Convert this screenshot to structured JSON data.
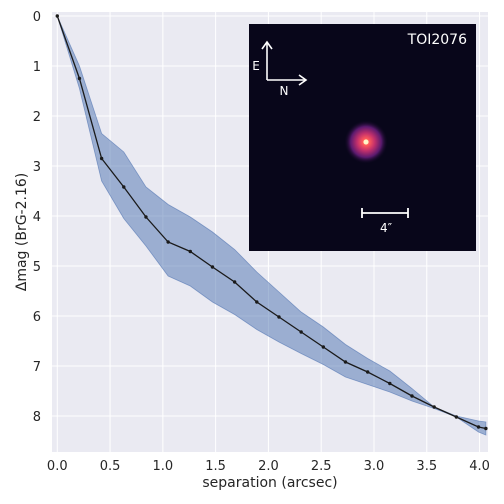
{
  "chart_data": {
    "type": "line",
    "title": "",
    "xlabel": "separation (arcsec)",
    "ylabel": "Δmag (BrG-2.16)",
    "xlim": [
      -0.05,
      4.08
    ],
    "ylim": [
      8.72,
      -0.08
    ],
    "y_inverted": true,
    "grid": true,
    "x_ticks": [
      0.0,
      0.5,
      1.0,
      1.5,
      2.0,
      2.5,
      3.0,
      3.5,
      4.0
    ],
    "x_tick_labels": [
      "0.0",
      "0.5",
      "1.0",
      "1.5",
      "2.0",
      "2.5",
      "3.0",
      "3.5",
      "4.0"
    ],
    "y_ticks": [
      0,
      1,
      2,
      3,
      4,
      5,
      6,
      7,
      8
    ],
    "y_tick_labels": [
      "0",
      "1",
      "2",
      "3",
      "4",
      "5",
      "6",
      "7",
      "8"
    ],
    "series": [
      {
        "line_color": "#1a1a1a",
        "band_color": "#4c72b0",
        "x": [
          0.0,
          0.21,
          0.42,
          0.63,
          0.84,
          1.05,
          1.26,
          1.47,
          1.68,
          1.89,
          2.1,
          2.31,
          2.52,
          2.73,
          2.94,
          3.15,
          3.36,
          3.57,
          3.78,
          3.99,
          4.06
        ],
        "y": [
          0.0,
          1.25,
          2.85,
          3.42,
          4.02,
          4.52,
          4.71,
          5.02,
          5.32,
          5.72,
          6.02,
          6.32,
          6.62,
          6.92,
          7.12,
          7.35,
          7.6,
          7.82,
          8.02,
          8.22,
          8.25
        ],
        "lower": [
          0.0,
          1.0,
          2.35,
          2.72,
          3.42,
          3.77,
          4.02,
          4.32,
          4.67,
          5.12,
          5.52,
          5.92,
          6.22,
          6.57,
          6.85,
          7.1,
          7.45,
          7.82,
          8.0,
          8.1,
          8.12
        ],
        "upper": [
          0.0,
          1.45,
          3.3,
          4.05,
          4.6,
          5.2,
          5.4,
          5.72,
          5.97,
          6.27,
          6.52,
          6.75,
          6.97,
          7.22,
          7.37,
          7.52,
          7.7,
          7.85,
          8.02,
          8.32,
          8.38
        ]
      }
    ],
    "inset": {
      "label": "TOI2076",
      "compass_east": "E",
      "compass_north": "N",
      "scale_bar_label": "4″",
      "background": "#08061a"
    }
  }
}
